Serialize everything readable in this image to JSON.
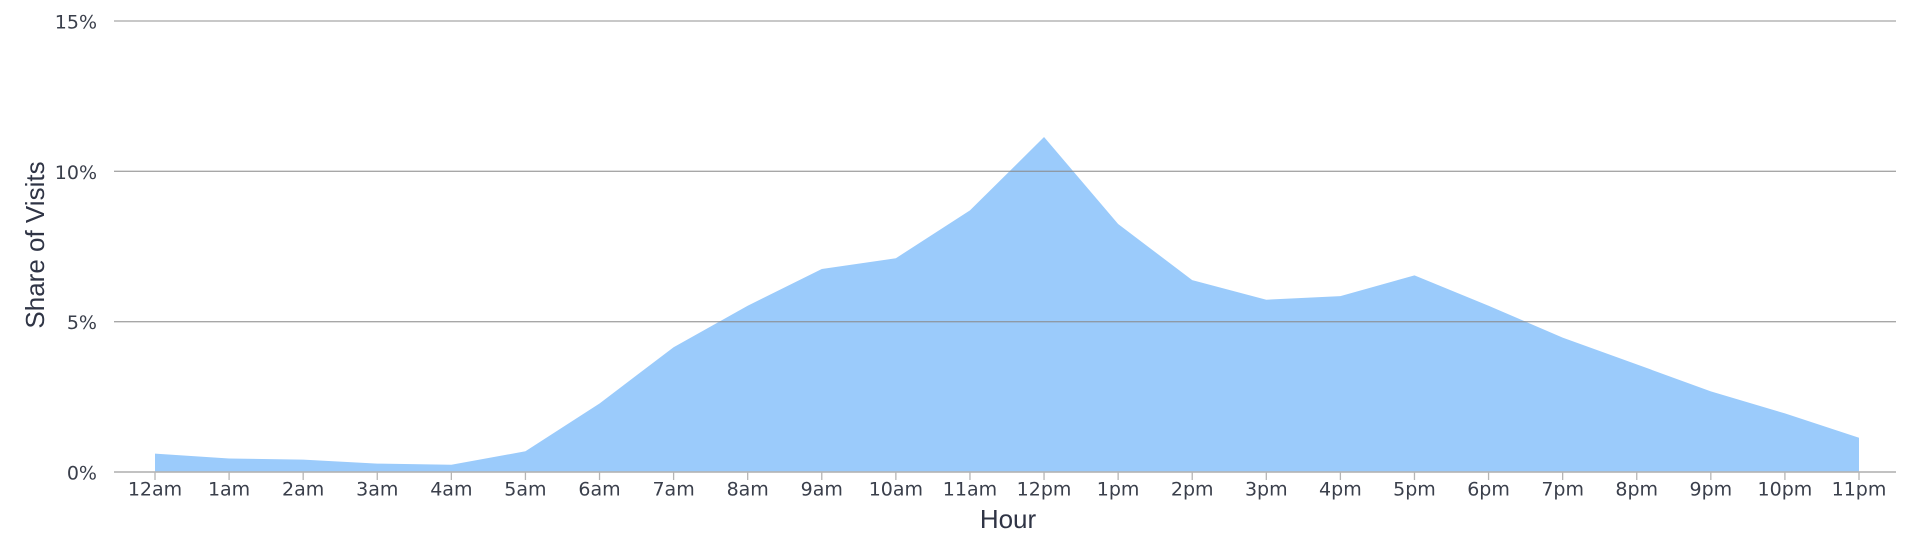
{
  "chart_data": {
    "type": "area",
    "x_label": "Hour",
    "y_label": "Share of Visits",
    "categories": [
      "12am",
      "1am",
      "2am",
      "3am",
      "4am",
      "5am",
      "6am",
      "7am",
      "8am",
      "9am",
      "10am",
      "11am",
      "12pm",
      "1pm",
      "2pm",
      "3pm",
      "4pm",
      "5pm",
      "6pm",
      "7pm",
      "8pm",
      "9pm",
      "10pm",
      "11pm"
    ],
    "values": [
      0.61,
      0.45,
      0.41,
      0.28,
      0.24,
      0.69,
      2.28,
      4.15,
      5.53,
      6.75,
      7.11,
      8.7,
      11.14,
      8.25,
      6.38,
      5.73,
      5.85,
      6.54,
      5.53,
      4.47,
      3.58,
      2.68,
      1.95,
      1.14
    ],
    "color": "#9bcbfb",
    "ylim": [
      0,
      15
    ],
    "yticks": [
      {
        "value": 0,
        "label": "0%"
      },
      {
        "value": 5,
        "label": "5%"
      },
      {
        "value": 10,
        "label": "10%"
      },
      {
        "value": 15,
        "label": "15%"
      }
    ],
    "grid": true
  }
}
